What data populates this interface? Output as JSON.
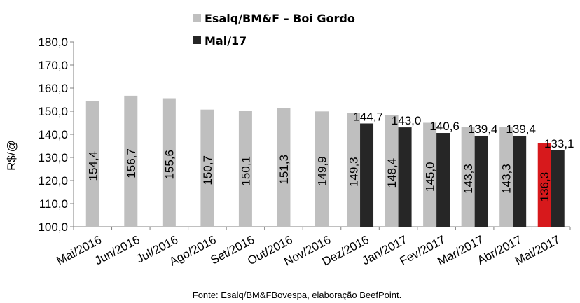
{
  "chart_data": {
    "type": "bar",
    "ylabel": "R$/@",
    "ylim": [
      100,
      180
    ],
    "yticks": [
      "100,0",
      "110,0",
      "120,0",
      "130,0",
      "140,0",
      "150,0",
      "160,0",
      "170,0",
      "180,0"
    ],
    "categories": [
      "Mai/2016",
      "Jun/2016",
      "Jul/2016",
      "Ago/2016",
      "Set/2016",
      "Out/2016",
      "Nov/2016",
      "Dez/2016",
      "Jan/2017",
      "Fev/2017",
      "Mar/2017",
      "Abr/2017",
      "Mai/2017"
    ],
    "series": [
      {
        "name": "Esalq/BM&F – Boi Gordo",
        "color": "#bfbfbf",
        "highlight_color": "#d7191c",
        "highlight_index": 12,
        "values": [
          154.4,
          156.7,
          155.6,
          150.7,
          150.1,
          151.3,
          149.9,
          149.3,
          148.4,
          145.0,
          143.3,
          143.3,
          136.3
        ],
        "labels": [
          "154,4",
          "156,7",
          "155,6",
          "150,7",
          "150,1",
          "151,3",
          "149,9",
          "149,3",
          "148,4",
          "145,0",
          "143,3",
          "143,3",
          "136,3"
        ]
      },
      {
        "name": "Mai/17",
        "color": "#262626",
        "values": [
          null,
          null,
          null,
          null,
          null,
          null,
          null,
          144.7,
          143.0,
          140.6,
          139.4,
          139.4,
          133.1
        ],
        "labels": [
          "",
          "",
          "",
          "",
          "",
          "",
          "",
          "144,7",
          "143,0",
          "140,6",
          "139,4",
          "139,4",
          "133,1"
        ]
      }
    ],
    "legend_position": "top-center",
    "grid": false
  },
  "source_note": "Fonte: Esalq/BM&FBovespa, elaboração BeefPoint."
}
